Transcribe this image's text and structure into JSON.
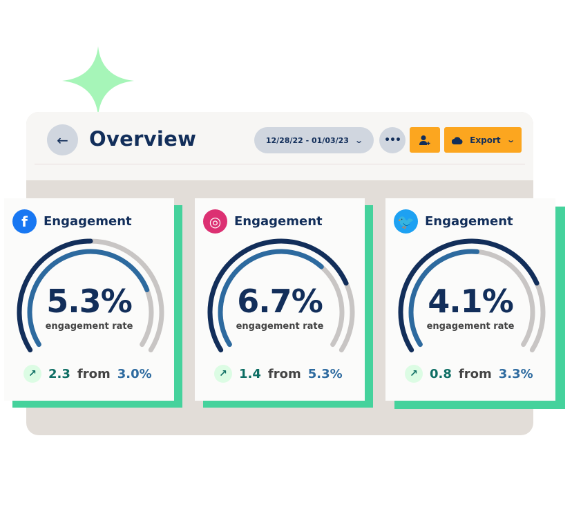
{
  "header": {
    "title": "Overview",
    "back_icon": "arrow-left-icon",
    "date_range": "12/28/22 - 01/03/23",
    "more_label": "•••",
    "add_user_icon": "user-plus-icon",
    "export_label": "Export",
    "export_icon": "cloud-icon"
  },
  "colors": {
    "accent": "#fca61f",
    "shadow": "#45d29c",
    "outer_arc": "#122e5a",
    "inner_arc": "#2d6a9f",
    "track": "#c8c5c4"
  },
  "cards": [
    {
      "platform": "facebook",
      "icon": "facebook-icon",
      "icon_glyph": "f",
      "icon_color": "#1877f2",
      "title": "Engagement",
      "value": "5.3%",
      "subtitle": "engagement rate",
      "delta": "2.3",
      "from_label": "from",
      "previous": "3.0%",
      "outer_fill": 0.5,
      "inner_fill": 0.78
    },
    {
      "platform": "instagram",
      "icon": "instagram-icon",
      "icon_glyph": "◎",
      "icon_color": "#dc3072",
      "title": "Engagement",
      "value": "6.7%",
      "subtitle": "engagement rate",
      "delta": "1.4",
      "from_label": "from",
      "previous": "5.3%",
      "outer_fill": 0.77,
      "inner_fill": 0.67
    },
    {
      "platform": "twitter",
      "icon": "twitter-icon",
      "icon_glyph": "🐦",
      "icon_color": "#1da1f2",
      "title": "Engagement",
      "value": "4.1%",
      "subtitle": "engagement rate",
      "delta": "0.8",
      "from_label": "from",
      "previous": "3.3%",
      "outer_fill": 0.77,
      "inner_fill": 0.52
    }
  ]
}
